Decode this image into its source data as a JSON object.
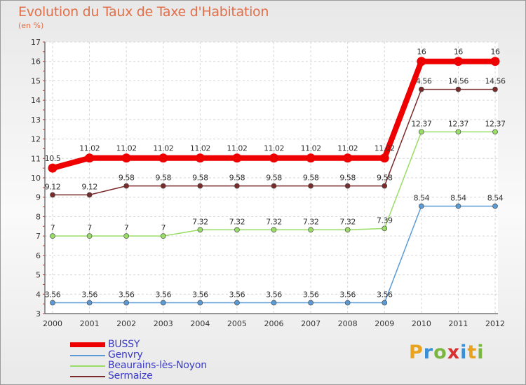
{
  "title": "Evolution du Taux de Taxe d'Habitation",
  "unit": "(en %)",
  "logo": {
    "letters": [
      "P",
      "r",
      "o",
      "x",
      "i",
      "t",
      "i"
    ],
    "colors": [
      "#e8a21c",
      "#3b8fd6",
      "#7ab640",
      "#d93030",
      "#3b8fd6",
      "#e8a21c",
      "#7ab640"
    ]
  },
  "chart_data": {
    "type": "line",
    "title": "Evolution du Taux de Taxe d'Habitation",
    "ylabel": "(en %)",
    "xlabel": "",
    "x": [
      "2000",
      "2001",
      "2002",
      "2003",
      "2004",
      "2005",
      "2006",
      "2007",
      "2008",
      "2009",
      "2010",
      "2011",
      "2012"
    ],
    "yticks": [
      "3",
      "4",
      "5",
      "6",
      "7",
      "8",
      "9",
      "10",
      "11",
      "12",
      "13",
      "14",
      "15",
      "16",
      "17"
    ],
    "ylim": [
      3,
      17
    ],
    "grid": true,
    "legend": "bottom-left",
    "series": [
      {
        "name": "BUSSY",
        "color": "#ee0000",
        "values": [
          10.5,
          11.02,
          11.02,
          11.02,
          11.02,
          11.02,
          11.02,
          11.02,
          11.02,
          11.02,
          16,
          16,
          16
        ],
        "labels": [
          "10.5",
          "11.02",
          "11.02",
          "11.02",
          "11.02",
          "11.02",
          "11.02",
          "11.02",
          "11.02",
          "11.02",
          "16",
          "16",
          "16"
        ]
      },
      {
        "name": "Genvry",
        "color": "#5b9bd5",
        "values": [
          3.56,
          3.56,
          3.56,
          3.56,
          3.56,
          3.56,
          3.56,
          3.56,
          3.56,
          3.56,
          8.54,
          8.54,
          8.54
        ],
        "labels": [
          "3.56",
          "3.56",
          "3.56",
          "3.56",
          "3.56",
          "3.56",
          "3.56",
          "3.56",
          "3.56",
          "3.56",
          "8.54",
          "8.54",
          "8.54"
        ]
      },
      {
        "name": "Beaurains-lès-Noyon",
        "color": "#99dd66",
        "values": [
          7,
          7,
          7,
          7,
          7.32,
          7.32,
          7.32,
          7.32,
          7.32,
          7.39,
          12.37,
          12.37,
          12.37
        ],
        "labels": [
          "7",
          "7",
          "7",
          "7",
          "7.32",
          "7.32",
          "7.32",
          "7.32",
          "7.32",
          "7.39",
          "12.37",
          "12.37",
          "12.37"
        ]
      },
      {
        "name": "Sermaize",
        "color": "#7a2a2a",
        "values": [
          9.12,
          9.12,
          9.58,
          9.58,
          9.58,
          9.58,
          9.58,
          9.58,
          9.58,
          9.58,
          14.56,
          14.56,
          14.56
        ],
        "labels": [
          "9.12",
          "9.12",
          "9.58",
          "9.58",
          "9.58",
          "9.58",
          "9.58",
          "9.58",
          "9.58",
          "9.58",
          "14.56",
          "14.56",
          "14.56"
        ]
      }
    ]
  }
}
